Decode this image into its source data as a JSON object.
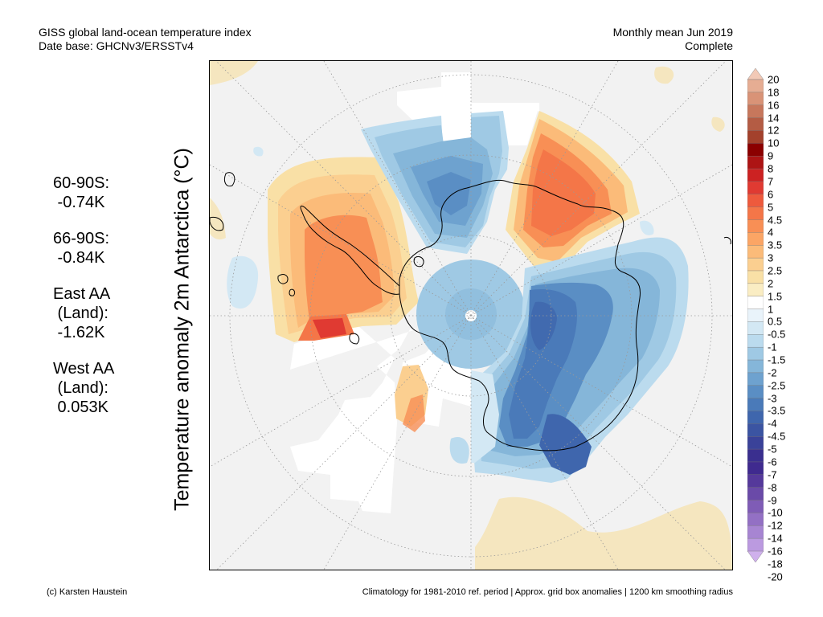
{
  "header": {
    "title": "GISS global land-ocean temperature index",
    "subtitle": "Date base: GHCNv3/ERSSTv4",
    "period": "Monthly mean Jun 2019",
    "status": "Complete"
  },
  "stats": [
    {
      "lines": [
        "60-90S:",
        " -0.74K"
      ]
    },
    {
      "lines": [
        "66-90S:",
        " -0.84K"
      ]
    },
    {
      "lines": [
        "East AA",
        " (Land):",
        " -1.62K"
      ]
    },
    {
      "lines": [
        "West AA",
        " (Land):",
        " 0.053K"
      ]
    }
  ],
  "map": {
    "ylabel": "Temperature anomaly 2m Antarctica (°C)",
    "projection": "south-polar-stereographic",
    "region": "Antarctica",
    "colors": {
      "ocean_nodata": "#f2f2f2",
      "land_nodata": "#f5e6bf",
      "coast": "#000000",
      "grid": "#9a9a9a"
    }
  },
  "colorbar": {
    "levels": [
      "20",
      "18",
      "16",
      "14",
      "12",
      "10",
      "9",
      "8",
      "7",
      "6",
      "5",
      "4.5",
      "4",
      "3.5",
      "3",
      "2.5",
      "2",
      "1.5",
      "1",
      "0.5",
      "-0.5",
      "-1",
      "-1.5",
      "-2",
      "-2.5",
      "-3",
      "-3.5",
      "-4",
      "-4.5",
      "-5",
      "-6",
      "-7",
      "-8",
      "-9",
      "-10",
      "-12",
      "-14",
      "-16",
      "-18",
      "-20"
    ],
    "colors": [
      "#f2c9b6",
      "#e6ad93",
      "#d99377",
      "#c7775c",
      "#b45c44",
      "#a3412c",
      "#8b0000",
      "#ad1414",
      "#cc2222",
      "#e03a32",
      "#ee5a3d",
      "#f47648",
      "#f88f55",
      "#fba565",
      "#fbbb79",
      "#fbcf90",
      "#f9e0a6",
      "#faedc3",
      "#ffffff",
      "#e9f3fa",
      "#d3e8f4",
      "#bbdbee",
      "#9fc9e4",
      "#85b6d9",
      "#6ea2cf",
      "#5a8ec4",
      "#4a7ab9",
      "#3f66ad",
      "#3b54a2",
      "#3a4299",
      "#3a2f8f",
      "#3f2a8f",
      "#55399b",
      "#6a4aa8",
      "#7f5cb6",
      "#9370c4",
      "#a785d2",
      "#bb9ae0",
      "#cfb0ec"
    ]
  },
  "footer": {
    "credit": "(c) Karsten Haustein",
    "note": "Climatology for 1981-2010 ref. period | Approx. grid box anomalies | 1200 km smoothing radius"
  }
}
